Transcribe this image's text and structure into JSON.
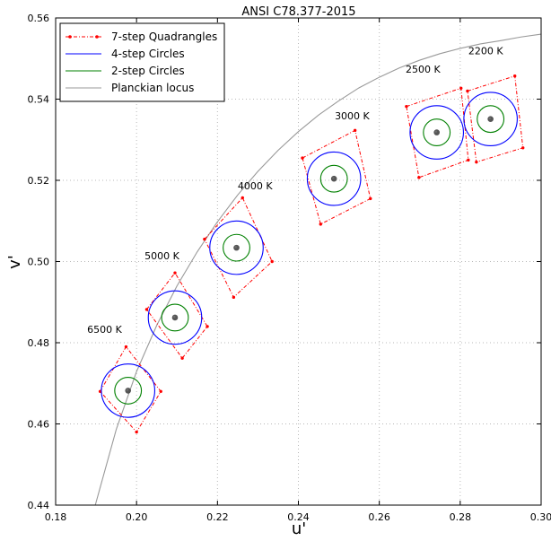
{
  "chart_data": {
    "type": "scatter",
    "title": "ANSI C78.377-2015",
    "xlabel": "u'",
    "ylabel": "v'",
    "xlim": [
      0.18,
      0.3
    ],
    "ylim": [
      0.44,
      0.56
    ],
    "xticks": [
      "0.18",
      "0.20",
      "0.22",
      "0.24",
      "0.26",
      "0.28",
      "0.30"
    ],
    "yticks": [
      "0.44",
      "0.46",
      "0.48",
      "0.50",
      "0.52",
      "0.54",
      "0.56"
    ],
    "grid": true,
    "legend_location": "top-left",
    "legend": [
      {
        "label": "7-step Quadrangles",
        "color": "#ff0000",
        "style": "dash-dot with dot markers"
      },
      {
        "label": "4-step Circles",
        "color": "#0000ff",
        "style": "solid"
      },
      {
        "label": "2-step Circles",
        "color": "#008000",
        "style": "solid"
      },
      {
        "label": "Planckian locus",
        "color": "#999999",
        "style": "solid"
      }
    ],
    "planckian_locus": {
      "u": [
        0.1898,
        0.195,
        0.2,
        0.205,
        0.21,
        0.215,
        0.22,
        0.225,
        0.23,
        0.235,
        0.24,
        0.245,
        0.25,
        0.255,
        0.26,
        0.265,
        0.27,
        0.275,
        0.28,
        0.285,
        0.29,
        0.295,
        0.3
      ],
      "v": [
        0.44,
        0.4587,
        0.4729,
        0.4843,
        0.494,
        0.5024,
        0.5098,
        0.5164,
        0.5222,
        0.5274,
        0.532,
        0.5361,
        0.5396,
        0.5428,
        0.5454,
        0.5477,
        0.5496,
        0.5512,
        0.5525,
        0.5536,
        0.5544,
        0.5553,
        0.556
      ]
    },
    "nominal_ccts": [
      {
        "label": "6500 K",
        "u": 0.1979,
        "v": 0.4682,
        "label_u": 0.1878,
        "label_v": 0.4824
      },
      {
        "label": "5000 K",
        "u": 0.2095,
        "v": 0.4862,
        "label_u": 0.202,
        "label_v": 0.5005
      },
      {
        "label": "4000 K",
        "u": 0.2247,
        "v": 0.5034,
        "label_u": 0.225,
        "label_v": 0.5178
      },
      {
        "label": "3000 K",
        "u": 0.2488,
        "v": 0.5204,
        "label_u": 0.249,
        "label_v": 0.535
      },
      {
        "label": "2500 K",
        "u": 0.2742,
        "v": 0.5318,
        "label_u": 0.2665,
        "label_v": 0.5465
      },
      {
        "label": "2200 K",
        "u": 0.2875,
        "v": 0.5351,
        "label_u": 0.282,
        "label_v": 0.551
      }
    ],
    "circles": {
      "four_step_radius_uv": 0.0066,
      "two_step_radius_uv": 0.0033
    },
    "quadrangles": [
      {
        "label": "6500 K",
        "points": [
          [
            0.191,
            0.468
          ],
          [
            0.1974,
            0.479
          ],
          [
            0.206,
            0.468
          ],
          [
            0.2,
            0.458
          ]
        ]
      },
      {
        "label": "5000 K",
        "points": [
          [
            0.2025,
            0.4882
          ],
          [
            0.2095,
            0.4972
          ],
          [
            0.2175,
            0.484
          ],
          [
            0.2113,
            0.4762
          ]
        ]
      },
      {
        "label": "4000 K",
        "points": [
          [
            0.2168,
            0.5055
          ],
          [
            0.2262,
            0.5157
          ],
          [
            0.2335,
            0.5
          ],
          [
            0.224,
            0.4912
          ]
        ]
      },
      {
        "label": "3000 K",
        "points": [
          [
            0.241,
            0.5255
          ],
          [
            0.254,
            0.5323
          ],
          [
            0.2578,
            0.5155
          ],
          [
            0.2455,
            0.5092
          ]
        ]
      },
      {
        "label": "2500 K",
        "points": [
          [
            0.2667,
            0.5382
          ],
          [
            0.2802,
            0.5427
          ],
          [
            0.282,
            0.525
          ],
          [
            0.2698,
            0.5207
          ]
        ]
      },
      {
        "label": "2200 K",
        "points": [
          [
            0.2818,
            0.542
          ],
          [
            0.2935,
            0.5457
          ],
          [
            0.2955,
            0.528
          ],
          [
            0.284,
            0.5245
          ]
        ]
      }
    ]
  },
  "colors": {
    "quadrangle": "#ff0000",
    "four_step": "#0000ff",
    "two_step": "#008000",
    "locus": "#999999",
    "center_dot": "#444444"
  }
}
